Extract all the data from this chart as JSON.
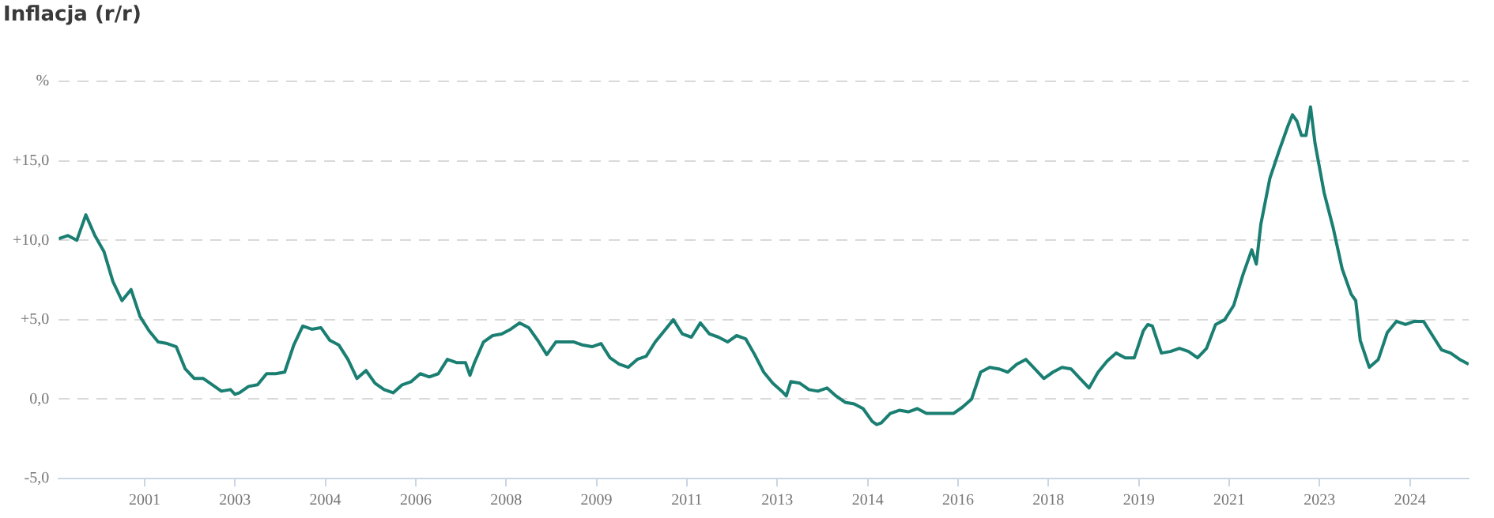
{
  "chart_data": {
    "type": "line",
    "title": "Inflacja (r/r)",
    "x": [
      "2000-01",
      "2000-03",
      "2000-05",
      "2000-07",
      "2000-09",
      "2000-11",
      "2001-01",
      "2001-03",
      "2001-05",
      "2001-07",
      "2001-09",
      "2001-11",
      "2002-01",
      "2002-03",
      "2002-05",
      "2002-07",
      "2002-09",
      "2002-11",
      "2003-01",
      "2003-03",
      "2003-04",
      "2003-05",
      "2003-07",
      "2003-09",
      "2003-11",
      "2004-01",
      "2004-03",
      "2004-05",
      "2004-07",
      "2004-09",
      "2004-11",
      "2005-01",
      "2005-03",
      "2005-05",
      "2005-07",
      "2005-09",
      "2005-11",
      "2006-01",
      "2006-03",
      "2006-05",
      "2006-07",
      "2006-09",
      "2006-11",
      "2007-01",
      "2007-03",
      "2007-05",
      "2007-07",
      "2007-08",
      "2007-09",
      "2007-11",
      "2008-01",
      "2008-03",
      "2008-05",
      "2008-07",
      "2008-09",
      "2008-11",
      "2009-01",
      "2009-03",
      "2009-05",
      "2009-07",
      "2009-09",
      "2009-11",
      "2010-01",
      "2010-03",
      "2010-05",
      "2010-07",
      "2010-09",
      "2010-11",
      "2011-01",
      "2011-03",
      "2011-05",
      "2011-07",
      "2011-09",
      "2011-11",
      "2012-01",
      "2012-03",
      "2012-05",
      "2012-07",
      "2012-09",
      "2012-11",
      "2013-01",
      "2013-03",
      "2013-05",
      "2013-06",
      "2013-07",
      "2013-09",
      "2013-11",
      "2014-01",
      "2014-03",
      "2014-05",
      "2014-07",
      "2014-09",
      "2014-11",
      "2015-01",
      "2015-02",
      "2015-03",
      "2015-05",
      "2015-07",
      "2015-09",
      "2015-11",
      "2016-01",
      "2016-03",
      "2016-05",
      "2016-07",
      "2016-09",
      "2016-11",
      "2017-01",
      "2017-03",
      "2017-05",
      "2017-07",
      "2017-09",
      "2017-11",
      "2018-01",
      "2018-03",
      "2018-05",
      "2018-07",
      "2018-09",
      "2018-11",
      "2019-01",
      "2019-03",
      "2019-05",
      "2019-07",
      "2019-09",
      "2019-11",
      "2020-01",
      "2020-02",
      "2020-03",
      "2020-05",
      "2020-07",
      "2020-09",
      "2020-11",
      "2021-01",
      "2021-03",
      "2021-05",
      "2021-07",
      "2021-09",
      "2021-11",
      "2022-01",
      "2022-02",
      "2022-03",
      "2022-05",
      "2022-07",
      "2022-09",
      "2022-10",
      "2022-11",
      "2022-12",
      "2023-01",
      "2023-02",
      "2023-03",
      "2023-05",
      "2023-07",
      "2023-09",
      "2023-11",
      "2023-12",
      "2024-01",
      "2024-03",
      "2024-05",
      "2024-07",
      "2024-09",
      "2024-11",
      "2025-01",
      "2025-03",
      "2025-05",
      "2025-07",
      "2025-09",
      "2025-11",
      "2026-01"
    ],
    "series": [
      {
        "color": "#1a7f72",
        "values": [
          10.1,
          10.3,
          10.0,
          11.6,
          10.3,
          9.3,
          7.4,
          6.2,
          6.9,
          5.2,
          4.3,
          3.6,
          3.5,
          3.3,
          1.9,
          1.3,
          1.3,
          0.9,
          0.5,
          0.6,
          0.3,
          0.4,
          0.8,
          0.9,
          1.6,
          1.6,
          1.7,
          3.4,
          4.6,
          4.4,
          4.5,
          3.7,
          3.4,
          2.5,
          1.3,
          1.8,
          1.0,
          0.6,
          0.4,
          0.9,
          1.1,
          1.6,
          1.4,
          1.6,
          2.5,
          2.3,
          2.3,
          1.5,
          2.3,
          3.6,
          4.0,
          4.1,
          4.4,
          4.8,
          4.5,
          3.7,
          2.8,
          3.6,
          3.6,
          3.6,
          3.4,
          3.3,
          3.5,
          2.6,
          2.2,
          2.0,
          2.5,
          2.7,
          3.6,
          4.3,
          5.0,
          4.1,
          3.9,
          4.8,
          4.1,
          3.9,
          3.6,
          4.0,
          3.8,
          2.8,
          1.7,
          1.0,
          0.5,
          0.2,
          1.1,
          1.0,
          0.6,
          0.5,
          0.7,
          0.2,
          -0.2,
          -0.3,
          -0.6,
          -1.4,
          -1.6,
          -1.5,
          -0.9,
          -0.7,
          -0.8,
          -0.6,
          -0.9,
          -0.9,
          -0.9,
          -0.9,
          -0.5,
          0.0,
          1.7,
          2.0,
          1.9,
          1.7,
          2.2,
          2.5,
          1.9,
          1.3,
          1.7,
          2.0,
          1.9,
          1.3,
          0.7,
          1.7,
          2.4,
          2.9,
          2.6,
          2.6,
          4.3,
          4.7,
          4.6,
          2.9,
          3.0,
          3.2,
          3.0,
          2.6,
          3.2,
          4.7,
          5.0,
          5.9,
          7.8,
          9.4,
          8.5,
          11.0,
          13.9,
          15.6,
          17.2,
          17.9,
          17.5,
          16.6,
          16.6,
          18.4,
          16.1,
          13.0,
          10.8,
          8.2,
          6.6,
          6.2,
          3.7,
          2.0,
          2.5,
          4.2,
          4.9,
          4.7,
          4.9,
          4.9,
          4.0,
          3.1,
          2.9,
          2.5,
          2.2
        ]
      }
    ],
    "xlim": [
      "2000-01",
      "2026-01"
    ],
    "xticks": [
      {
        "value": "2001-08",
        "label": "2001"
      },
      {
        "value": "2003-04",
        "label": "2003"
      },
      {
        "value": "2004-12",
        "label": "2004"
      },
      {
        "value": "2006-08",
        "label": "2006"
      },
      {
        "value": "2008-04",
        "label": "2008"
      },
      {
        "value": "2009-12",
        "label": "2009"
      },
      {
        "value": "2011-08",
        "label": "2011"
      },
      {
        "value": "2013-04",
        "label": "2013"
      },
      {
        "value": "2014-12",
        "label": "2014"
      },
      {
        "value": "2016-08",
        "label": "2016"
      },
      {
        "value": "2018-04",
        "label": "2018"
      },
      {
        "value": "2019-12",
        "label": "2019"
      },
      {
        "value": "2021-08",
        "label": "2021"
      },
      {
        "value": "2023-04",
        "label": "2023"
      },
      {
        "value": "2024-12",
        "label": "2024"
      }
    ],
    "ylim": [
      -5,
      20
    ],
    "yticks": [
      {
        "value": -5,
        "label": "-5,0"
      },
      {
        "value": 0,
        "label": "0,0"
      },
      {
        "value": 5,
        "label": "+5,0"
      },
      {
        "value": 10,
        "label": "+10,0"
      },
      {
        "value": 15,
        "label": "+15,0"
      },
      {
        "value": 20,
        "label": "%"
      }
    ],
    "grid": "y",
    "line_style": "solid"
  }
}
